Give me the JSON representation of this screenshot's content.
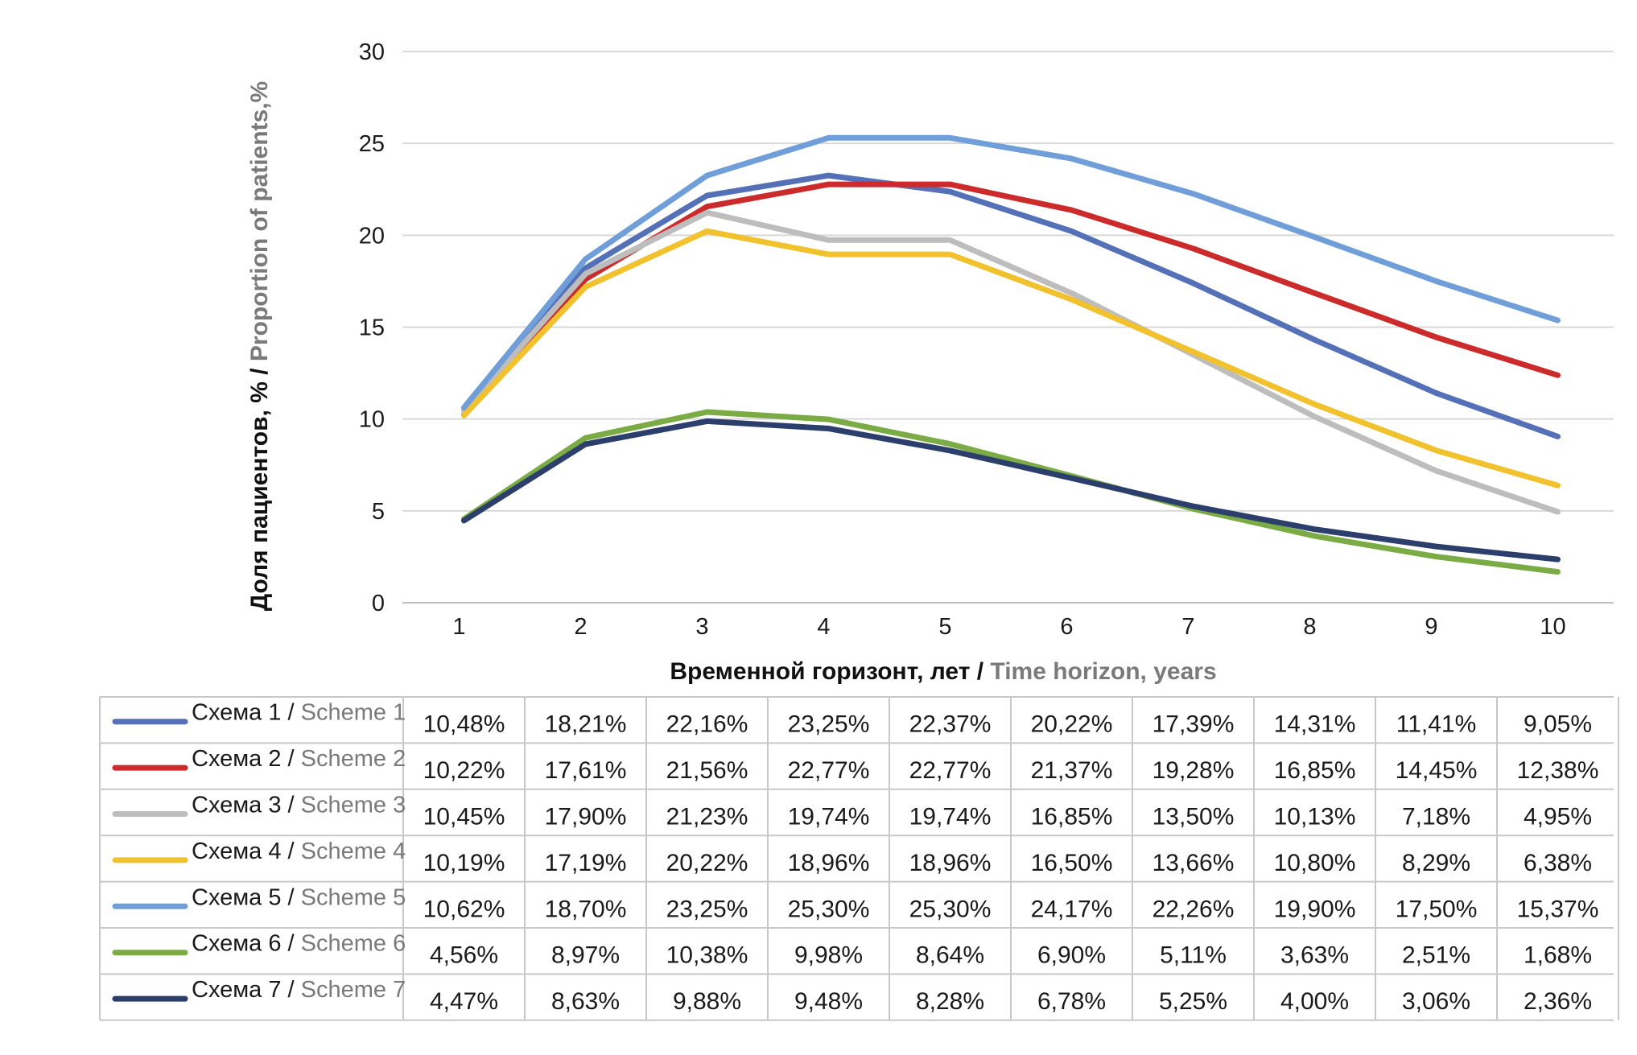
{
  "chart_data": {
    "type": "line",
    "x": [
      1,
      2,
      3,
      4,
      5,
      6,
      7,
      8,
      9,
      10
    ],
    "ylim": [
      0,
      30
    ],
    "yticks": [
      0,
      5,
      10,
      15,
      20,
      25,
      30
    ],
    "grid": true,
    "ylabel": {
      "ru": "Доля пациентов, % / ",
      "en": "Proportion of patients,%"
    },
    "xlabel": {
      "ru": "Временной горизонт, лет / ",
      "en": "Time horizon, years"
    },
    "series": [
      {
        "name_ru": "Схема 1 / ",
        "name_en": "Scheme 1",
        "color": "#5470b6",
        "values": [
          10.48,
          18.21,
          22.16,
          23.25,
          22.37,
          20.22,
          17.39,
          14.31,
          11.41,
          9.05
        ],
        "labels": [
          "10,48%",
          "18,21%",
          "22,16%",
          "23,25%",
          "22,37%",
          "20,22%",
          "17,39%",
          "14,31%",
          "11,41%",
          "9,05%"
        ]
      },
      {
        "name_ru": "Схема 2 / ",
        "name_en": "Scheme 2",
        "color": "#cc2b2b",
        "values": [
          10.22,
          17.61,
          21.56,
          22.77,
          22.77,
          21.37,
          19.28,
          16.85,
          14.45,
          12.38
        ],
        "labels": [
          "10,22%",
          "17,61%",
          "21,56%",
          "22,77%",
          "22,77%",
          "21,37%",
          "19,28%",
          "16,85%",
          "14,45%",
          "12,38%"
        ]
      },
      {
        "name_ru": "Схема 3 / ",
        "name_en": "Scheme 3",
        "color": "#bdbdbd",
        "values": [
          10.45,
          17.9,
          21.23,
          19.74,
          19.74,
          16.85,
          13.5,
          10.13,
          7.18,
          4.95
        ],
        "labels": [
          "10,45%",
          "17,90%",
          "21,23%",
          "19,74%",
          "19,74%",
          "16,85%",
          "13,50%",
          "10,13%",
          "7,18%",
          "4,95%"
        ]
      },
      {
        "name_ru": "Схема 4 / ",
        "name_en": "Scheme 4",
        "color": "#f2c12e",
        "values": [
          10.19,
          17.19,
          20.22,
          18.96,
          18.96,
          16.5,
          13.66,
          10.8,
          8.29,
          6.38
        ],
        "labels": [
          "10,19%",
          "17,19%",
          "20,22%",
          "18,96%",
          "18,96%",
          "16,50%",
          "13,66%",
          "10,80%",
          "8,29%",
          "6,38%"
        ]
      },
      {
        "name_ru": "Схема 5 / ",
        "name_en": "Scheme 5",
        "color": "#6f9ed8",
        "values": [
          10.62,
          18.7,
          23.25,
          25.3,
          25.3,
          24.17,
          22.26,
          19.9,
          17.5,
          15.37
        ],
        "labels": [
          "10,62%",
          "18,70%",
          "23,25%",
          "25,30%",
          "25,30%",
          "24,17%",
          "22,26%",
          "19,90%",
          "17,50%",
          "15,37%"
        ]
      },
      {
        "name_ru": "Схема 6 / ",
        "name_en": "Scheme 6",
        "color": "#7aab45",
        "values": [
          4.56,
          8.97,
          10.38,
          9.98,
          8.64,
          6.9,
          5.11,
          3.63,
          2.51,
          1.68
        ],
        "labels": [
          "4,56%",
          "8,97%",
          "10,38%",
          "9,98%",
          "8,64%",
          "6,90%",
          "5,11%",
          "3,63%",
          "2,51%",
          "1,68%"
        ]
      },
      {
        "name_ru": "Схема 7 / ",
        "name_en": "Scheme 7",
        "color": "#2c3e6b",
        "values": [
          4.47,
          8.63,
          9.88,
          9.48,
          8.28,
          6.78,
          5.25,
          4.0,
          3.06,
          2.36
        ],
        "labels": [
          "4,47%",
          "8,63%",
          "9,88%",
          "9,48%",
          "8,28%",
          "6,78%",
          "5,25%",
          "4,00%",
          "3,06%",
          "2,36%"
        ]
      }
    ]
  }
}
